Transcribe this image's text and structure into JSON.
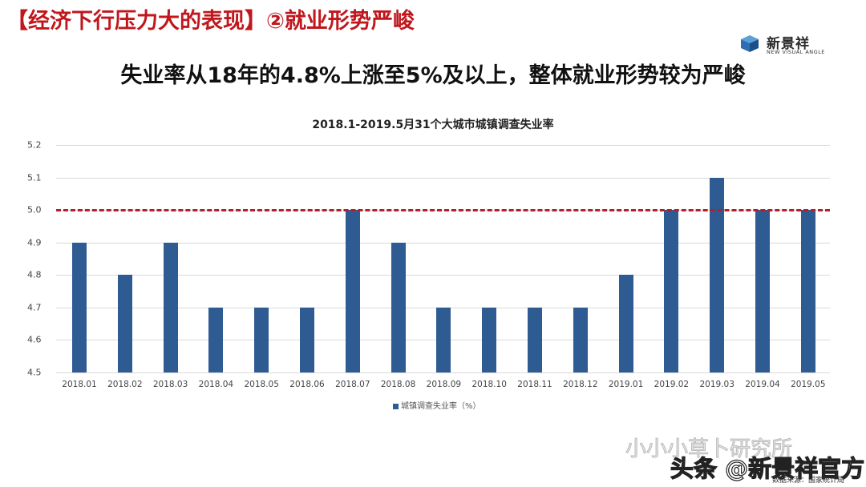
{
  "slide": {
    "header": "【经济下行压力大的表现】②就业形势严峻",
    "headline": "失业率从18年的4.8%上涨至5%及以上，整体就业形势较为严峻",
    "logo": {
      "name": "新景祥",
      "subtitle": "NEW VISUAL ANGLE",
      "icon": "cube-logo-icon"
    },
    "watermark_1": "小小小草卜研究所",
    "watermark_2": "头条 @新景祥官方",
    "source": "数据来源：国家统计局",
    "colors": {
      "header": "#c0171d",
      "bar": "#2f5b93",
      "reference_line": "#b21f2d"
    }
  },
  "chart_data": {
    "type": "bar",
    "title": "2018.1-2019.5月31个大城市城镇调查失业率",
    "xlabel": "",
    "ylabel": "",
    "ylim": [
      4.5,
      5.2
    ],
    "yticks": [
      "5.2",
      "5.1",
      "5.0",
      "4.9",
      "4.8",
      "4.7",
      "4.6",
      "4.5"
    ],
    "grid": true,
    "legend_position": "bottom",
    "categories": [
      "2018.01",
      "2018.02",
      "2018.03",
      "2018.04",
      "2018.05",
      "2018.06",
      "2018.07",
      "2018.08",
      "2018.09",
      "2018.10",
      "2018.11",
      "2018.12",
      "2019.01",
      "2019.02",
      "2019.03",
      "2019.04",
      "2019.05"
    ],
    "series": [
      {
        "name": "城镇调查失业率（%）",
        "values": [
          4.9,
          4.8,
          4.9,
          4.7,
          4.7,
          4.7,
          5.0,
          4.9,
          4.7,
          4.7,
          4.7,
          4.7,
          4.8,
          5.0,
          5.1,
          5.0,
          5.0
        ]
      }
    ],
    "annotations": [
      {
        "type": "horizontal-dashed-line",
        "y": 5.0,
        "color": "#b21f2d"
      }
    ]
  }
}
